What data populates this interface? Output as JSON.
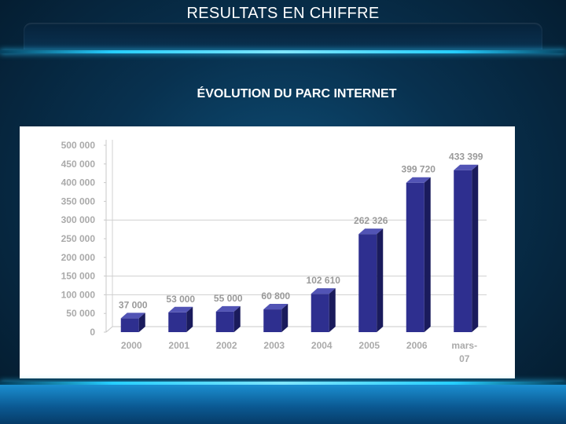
{
  "slide": {
    "title": "RESULTATS EN CHIFFRE",
    "subtitle": "ÉVOLUTION DU PARC INTERNET"
  },
  "colors": {
    "bar_front": "#2e2f8f",
    "bar_top": "#5254b5",
    "bar_side": "#1a1b5c",
    "accent_line": "#26cfff"
  },
  "chart_data": {
    "type": "bar",
    "title": "",
    "categories": [
      "2000",
      "2001",
      "2002",
      "2003",
      "2004",
      "2005",
      "2006",
      "mars-07"
    ],
    "values": [
      37000,
      53000,
      55000,
      60800,
      102610,
      262326,
      399720,
      433399
    ],
    "data_labels": [
      "37 000",
      "53 000",
      "55 000",
      "60 800",
      "102 610",
      "262 326",
      "399 720",
      "433 399"
    ],
    "ylim": [
      0,
      500000
    ],
    "yticks": [
      0,
      50000,
      100000,
      150000,
      200000,
      250000,
      300000,
      350000,
      400000,
      450000,
      500000
    ],
    "ytick_labels": [
      "0",
      "50 000",
      "100 000",
      "150 000",
      "200 000",
      "250 000",
      "300 000",
      "350 000",
      "400 000",
      "450 000",
      "500 000"
    ],
    "xlabel": "",
    "ylabel": "",
    "style": "3d",
    "grid": "partial"
  }
}
